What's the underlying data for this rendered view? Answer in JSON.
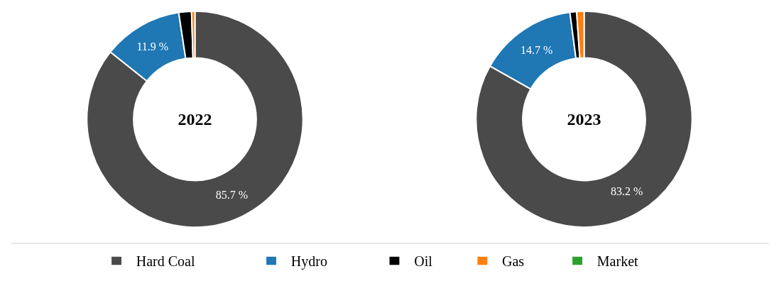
{
  "chart_data": {
    "type": "donut",
    "categories": [
      "Hard Coal",
      "Hydro",
      "Oil",
      "Gas",
      "Market"
    ],
    "colors": [
      "#4a4a4a",
      "#1f77b4",
      "#000000",
      "#ff7f0e",
      "#2ca02c"
    ],
    "legend": "bottom",
    "series": [
      {
        "name": "2022",
        "values": [
          85.7,
          11.9,
          1.9,
          0.5,
          0
        ],
        "value_labels": [
          "85.7 %",
          "11.9 %",
          null,
          null,
          null
        ]
      },
      {
        "name": "2023",
        "values": [
          83.2,
          14.7,
          1.0,
          1.1,
          0
        ],
        "value_labels": [
          "83.2 %",
          "14.7 %",
          null,
          null,
          null
        ]
      }
    ]
  }
}
